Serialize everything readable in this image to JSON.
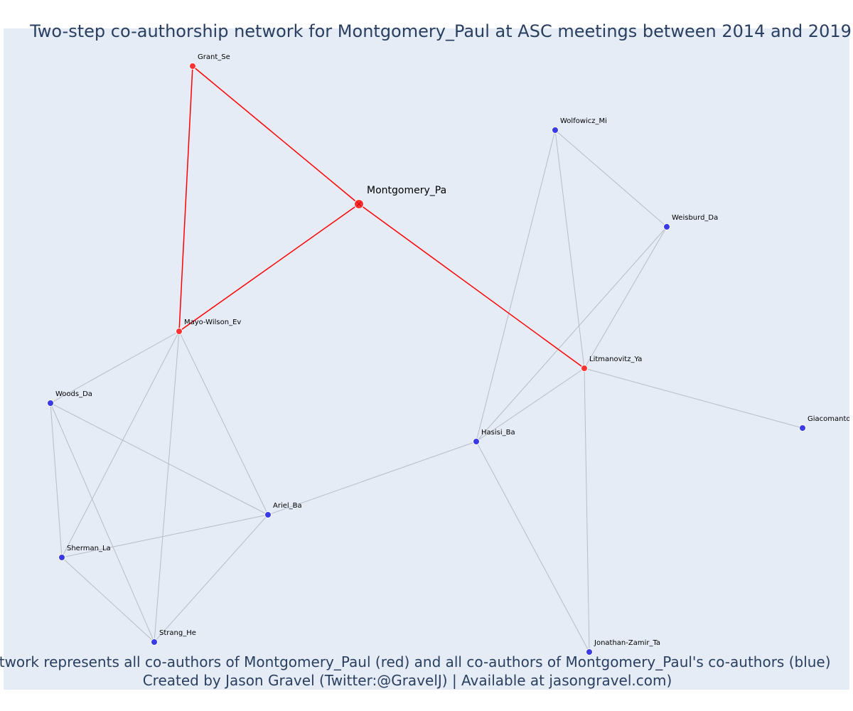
{
  "title": "Two-step co-authorship network for Montgomery_Paul at ASC meetings between 2014 and 2019",
  "caption": {
    "line1": "Network represents all co-authors of Montgomery_Paul (red) and all co-authors of Montgomery_Paul's co-authors (blue)",
    "line2": "Created by Jason Gravel (Twitter:@GravelJ) | Available at jasongravel.com)"
  },
  "colors": {
    "plot_background": "#e5ecf6",
    "red": "#ff0000",
    "red_node": "#ff3333",
    "blue_node": "#3a3ae6",
    "grey_edge": "#b8bcc8",
    "text": "#2a3f5f"
  },
  "nodes": [
    {
      "id": "montgomery",
      "label": "Montgomery_Pa",
      "group": "center"
    },
    {
      "id": "grant",
      "label": "Grant_Se",
      "group": "red"
    },
    {
      "id": "mayo",
      "label": "Mayo-Wilson_Ev",
      "group": "red"
    },
    {
      "id": "litman",
      "label": "Litmanovitz_Ya",
      "group": "red"
    },
    {
      "id": "wolfowicz",
      "label": "Wolfowicz_Mi",
      "group": "blue"
    },
    {
      "id": "weisburd",
      "label": "Weisburd_Da",
      "group": "blue"
    },
    {
      "id": "woods",
      "label": "Woods_Da",
      "group": "blue"
    },
    {
      "id": "hasisi",
      "label": "Hasisi_Ba",
      "group": "blue"
    },
    {
      "id": "giacomantonio",
      "label": "Giacomantonio",
      "group": "blue"
    },
    {
      "id": "ariel",
      "label": "Ariel_Ba",
      "group": "blue"
    },
    {
      "id": "sherman",
      "label": "Sherman_La",
      "group": "blue"
    },
    {
      "id": "strang",
      "label": "Strang_He",
      "group": "blue"
    },
    {
      "id": "jonathan",
      "label": "Jonathan-Zamir_Ta",
      "group": "blue"
    }
  ],
  "edges": [
    {
      "source": "montgomery",
      "target": "grant",
      "group": "red"
    },
    {
      "source": "montgomery",
      "target": "mayo",
      "group": "red"
    },
    {
      "source": "montgomery",
      "target": "litman",
      "group": "red"
    },
    {
      "source": "grant",
      "target": "mayo",
      "group": "red"
    },
    {
      "source": "mayo",
      "target": "woods",
      "group": "grey"
    },
    {
      "source": "mayo",
      "target": "sherman",
      "group": "grey"
    },
    {
      "source": "mayo",
      "target": "strang",
      "group": "grey"
    },
    {
      "source": "mayo",
      "target": "ariel",
      "group": "grey"
    },
    {
      "source": "woods",
      "target": "sherman",
      "group": "grey"
    },
    {
      "source": "woods",
      "target": "strang",
      "group": "grey"
    },
    {
      "source": "woods",
      "target": "ariel",
      "group": "grey"
    },
    {
      "source": "sherman",
      "target": "ariel",
      "group": "grey"
    },
    {
      "source": "sherman",
      "target": "strang",
      "group": "grey"
    },
    {
      "source": "strang",
      "target": "ariel",
      "group": "grey"
    },
    {
      "source": "ariel",
      "target": "hasisi",
      "group": "grey"
    },
    {
      "source": "hasisi",
      "target": "wolfowicz",
      "group": "grey"
    },
    {
      "source": "hasisi",
      "target": "weisburd",
      "group": "grey"
    },
    {
      "source": "hasisi",
      "target": "litman",
      "group": "grey"
    },
    {
      "source": "hasisi",
      "target": "jonathan",
      "group": "grey"
    },
    {
      "source": "wolfowicz",
      "target": "weisburd",
      "group": "grey"
    },
    {
      "source": "wolfowicz",
      "target": "litman",
      "group": "grey"
    },
    {
      "source": "weisburd",
      "target": "litman",
      "group": "grey"
    },
    {
      "source": "litman",
      "target": "giacomantonio",
      "group": "grey"
    },
    {
      "source": "litman",
      "target": "jonathan",
      "group": "grey"
    }
  ]
}
